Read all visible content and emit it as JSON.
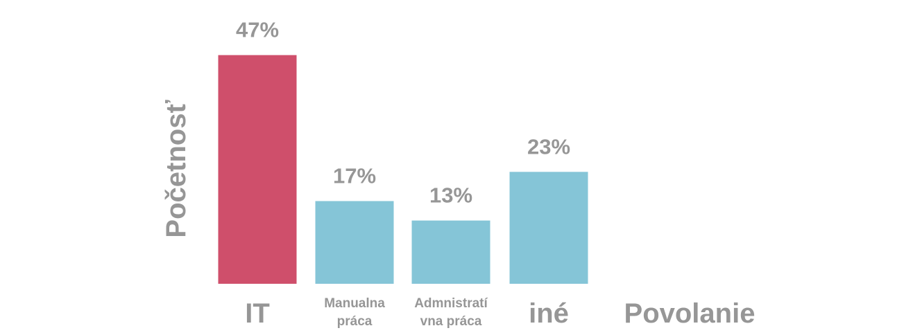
{
  "chart_data": {
    "type": "bar",
    "categories": [
      "IT",
      "Manualna práca",
      "Admnistratívna práca",
      "iné"
    ],
    "category_display_lines": [
      [
        "IT"
      ],
      [
        "Manualna",
        "práca"
      ],
      [
        "Admnistratí",
        "vna práca"
      ],
      [
        "iné"
      ]
    ],
    "values": [
      47,
      17,
      13,
      23
    ],
    "value_labels": [
      "47%",
      "17%",
      "13%",
      "23%"
    ],
    "bar_colors": [
      "#cf4f6b",
      "#85c5d7",
      "#85c5d7",
      "#85c5d7"
    ],
    "xlabel": "Povolanie",
    "ylabel": "Početnosť",
    "ylim": [
      0,
      50
    ],
    "grid": false,
    "legend": "none"
  }
}
